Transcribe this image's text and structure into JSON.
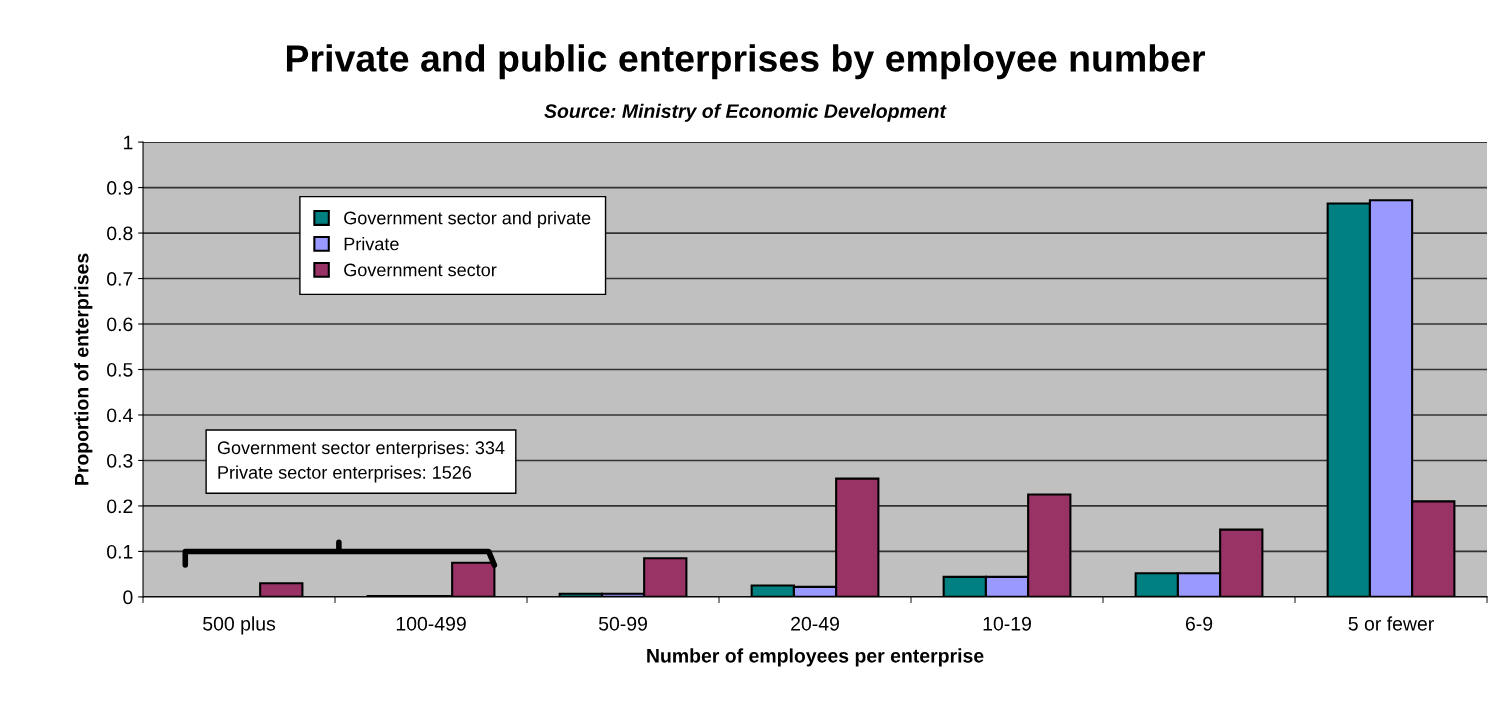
{
  "chart_data": {
    "type": "bar",
    "title": "Private and public enterprises by employee number",
    "subtitle": "Source: Ministry of Economic Development",
    "xlabel": "Number of employees per enterprise",
    "ylabel": "Proportion of enterprises",
    "categories": [
      "500 plus",
      "100-499",
      "50-99",
      "20-49",
      "10-19",
      "6-9",
      "5 or fewer"
    ],
    "series": [
      {
        "name": "Government sector and private",
        "color": "#008080",
        "values": [
          null,
          0.002,
          0.007,
          0.025,
          0.044,
          0.052,
          0.865
        ]
      },
      {
        "name": "Private",
        "color": "#9999ff",
        "values": [
          null,
          0.002,
          0.007,
          0.022,
          0.044,
          0.052,
          0.872
        ]
      },
      {
        "name": "Government sector",
        "color": "#993366",
        "values": [
          0.03,
          0.075,
          0.085,
          0.26,
          0.225,
          0.148,
          0.21
        ]
      }
    ],
    "ylim": [
      0,
      1
    ],
    "yticks": [
      0,
      0.1,
      0.2,
      0.3,
      0.4,
      0.5,
      0.6,
      0.7,
      0.8,
      0.9,
      1
    ],
    "grid": "y",
    "legend": "top left",
    "annotations": [
      "Government sector enterprises: 334\nPrivate sector enterprises: 1526"
    ]
  }
}
